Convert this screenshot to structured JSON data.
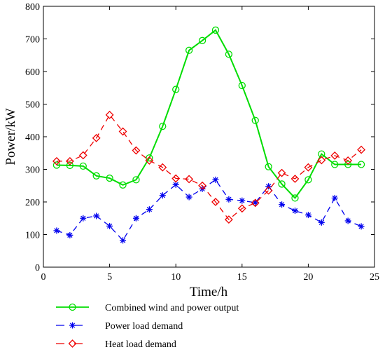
{
  "chart_data": {
    "type": "line",
    "xlabel": "Time/h",
    "ylabel": "Power/kW",
    "xlim": [
      0,
      25
    ],
    "ylim": [
      0,
      800
    ],
    "xticks": [
      0,
      5,
      10,
      15,
      20,
      25
    ],
    "yticks": [
      0,
      100,
      200,
      300,
      400,
      500,
      600,
      700,
      800
    ],
    "grid": false,
    "legend_position": "bottom",
    "x": [
      1,
      2,
      3,
      4,
      5,
      6,
      7,
      8,
      9,
      10,
      11,
      12,
      13,
      14,
      15,
      16,
      17,
      18,
      19,
      20,
      21,
      22,
      23,
      24
    ],
    "series": [
      {
        "name": "Combined wind and power output",
        "color": "#00dd00",
        "line_style": "solid",
        "marker": "circle",
        "values": [
          313,
          312,
          310,
          280,
          273,
          252,
          268,
          335,
          432,
          545,
          665,
          695,
          727,
          653,
          557,
          450,
          308,
          255,
          212,
          268,
          347,
          315,
          315,
          315
        ]
      },
      {
        "name": "Power load demand",
        "color": "#0000ee",
        "line_style": "dashed",
        "marker": "asterisk",
        "values": [
          112,
          98,
          150,
          157,
          126,
          82,
          150,
          177,
          220,
          253,
          215,
          240,
          268,
          208,
          204,
          198,
          248,
          192,
          173,
          160,
          137,
          212,
          142,
          125
        ]
      },
      {
        "name": "Heat load demand",
        "color": "#ee0000",
        "line_style": "dashed",
        "marker": "diamond",
        "values": [
          325,
          325,
          343,
          396,
          467,
          416,
          358,
          327,
          306,
          272,
          270,
          250,
          200,
          146,
          180,
          197,
          235,
          289,
          271,
          306,
          328,
          342,
          327,
          360
        ]
      }
    ]
  }
}
